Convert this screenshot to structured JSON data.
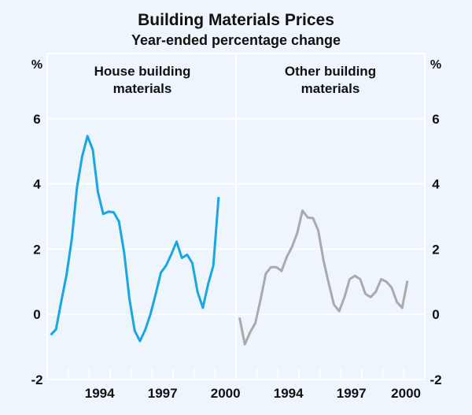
{
  "colors": {
    "background": "#eef5fc",
    "grid": "#ffffff",
    "house": "#1aa6e2",
    "other": "#aaaaaa"
  },
  "chart_data": {
    "type": "line",
    "title": "Building Materials Prices",
    "subtitle": "Year-ended percentage change",
    "ylabel_left": "%",
    "ylabel_right": "%",
    "ylim": [
      -2,
      8
    ],
    "yticks": [
      6,
      4,
      2,
      0,
      -2
    ],
    "ytick_labels": [
      "6",
      "4",
      "2",
      "0",
      "-2"
    ],
    "xlim": [
      1992,
      2001
    ],
    "xtick_labels": [
      "1994",
      "1997",
      "2000"
    ],
    "xtick_years": [
      1994,
      1997,
      2000
    ],
    "grid": true,
    "panels": [
      {
        "title_line1": "House building",
        "title_line2": "materials",
        "series": {
          "name": "House building materials",
          "x_start": 1992.17,
          "x_step": 0.25,
          "values": [
            -0.63,
            -0.46,
            0.4,
            1.2,
            2.3,
            3.9,
            4.85,
            5.47,
            5.05,
            3.75,
            3.08,
            3.15,
            3.13,
            2.85,
            1.88,
            0.48,
            -0.5,
            -0.82,
            -0.48,
            0.0,
            0.62,
            1.28,
            1.5,
            1.85,
            2.23,
            1.73,
            1.83,
            1.57,
            0.68,
            0.2,
            0.92,
            1.5,
            3.6
          ]
        }
      },
      {
        "title_line1": "Other building",
        "title_line2": "materials",
        "series": {
          "name": "Other building materials",
          "x_start": 1992.17,
          "x_step": 0.25,
          "values": [
            -0.1,
            -0.92,
            -0.55,
            -0.27,
            0.45,
            1.25,
            1.45,
            1.45,
            1.33,
            1.76,
            2.07,
            2.5,
            3.18,
            2.97,
            2.95,
            2.58,
            1.66,
            0.95,
            0.3,
            0.1,
            0.53,
            1.08,
            1.18,
            1.08,
            0.63,
            0.53,
            0.7,
            1.08,
            1.0,
            0.82,
            0.38,
            0.2,
            1.03
          ]
        }
      }
    ]
  }
}
